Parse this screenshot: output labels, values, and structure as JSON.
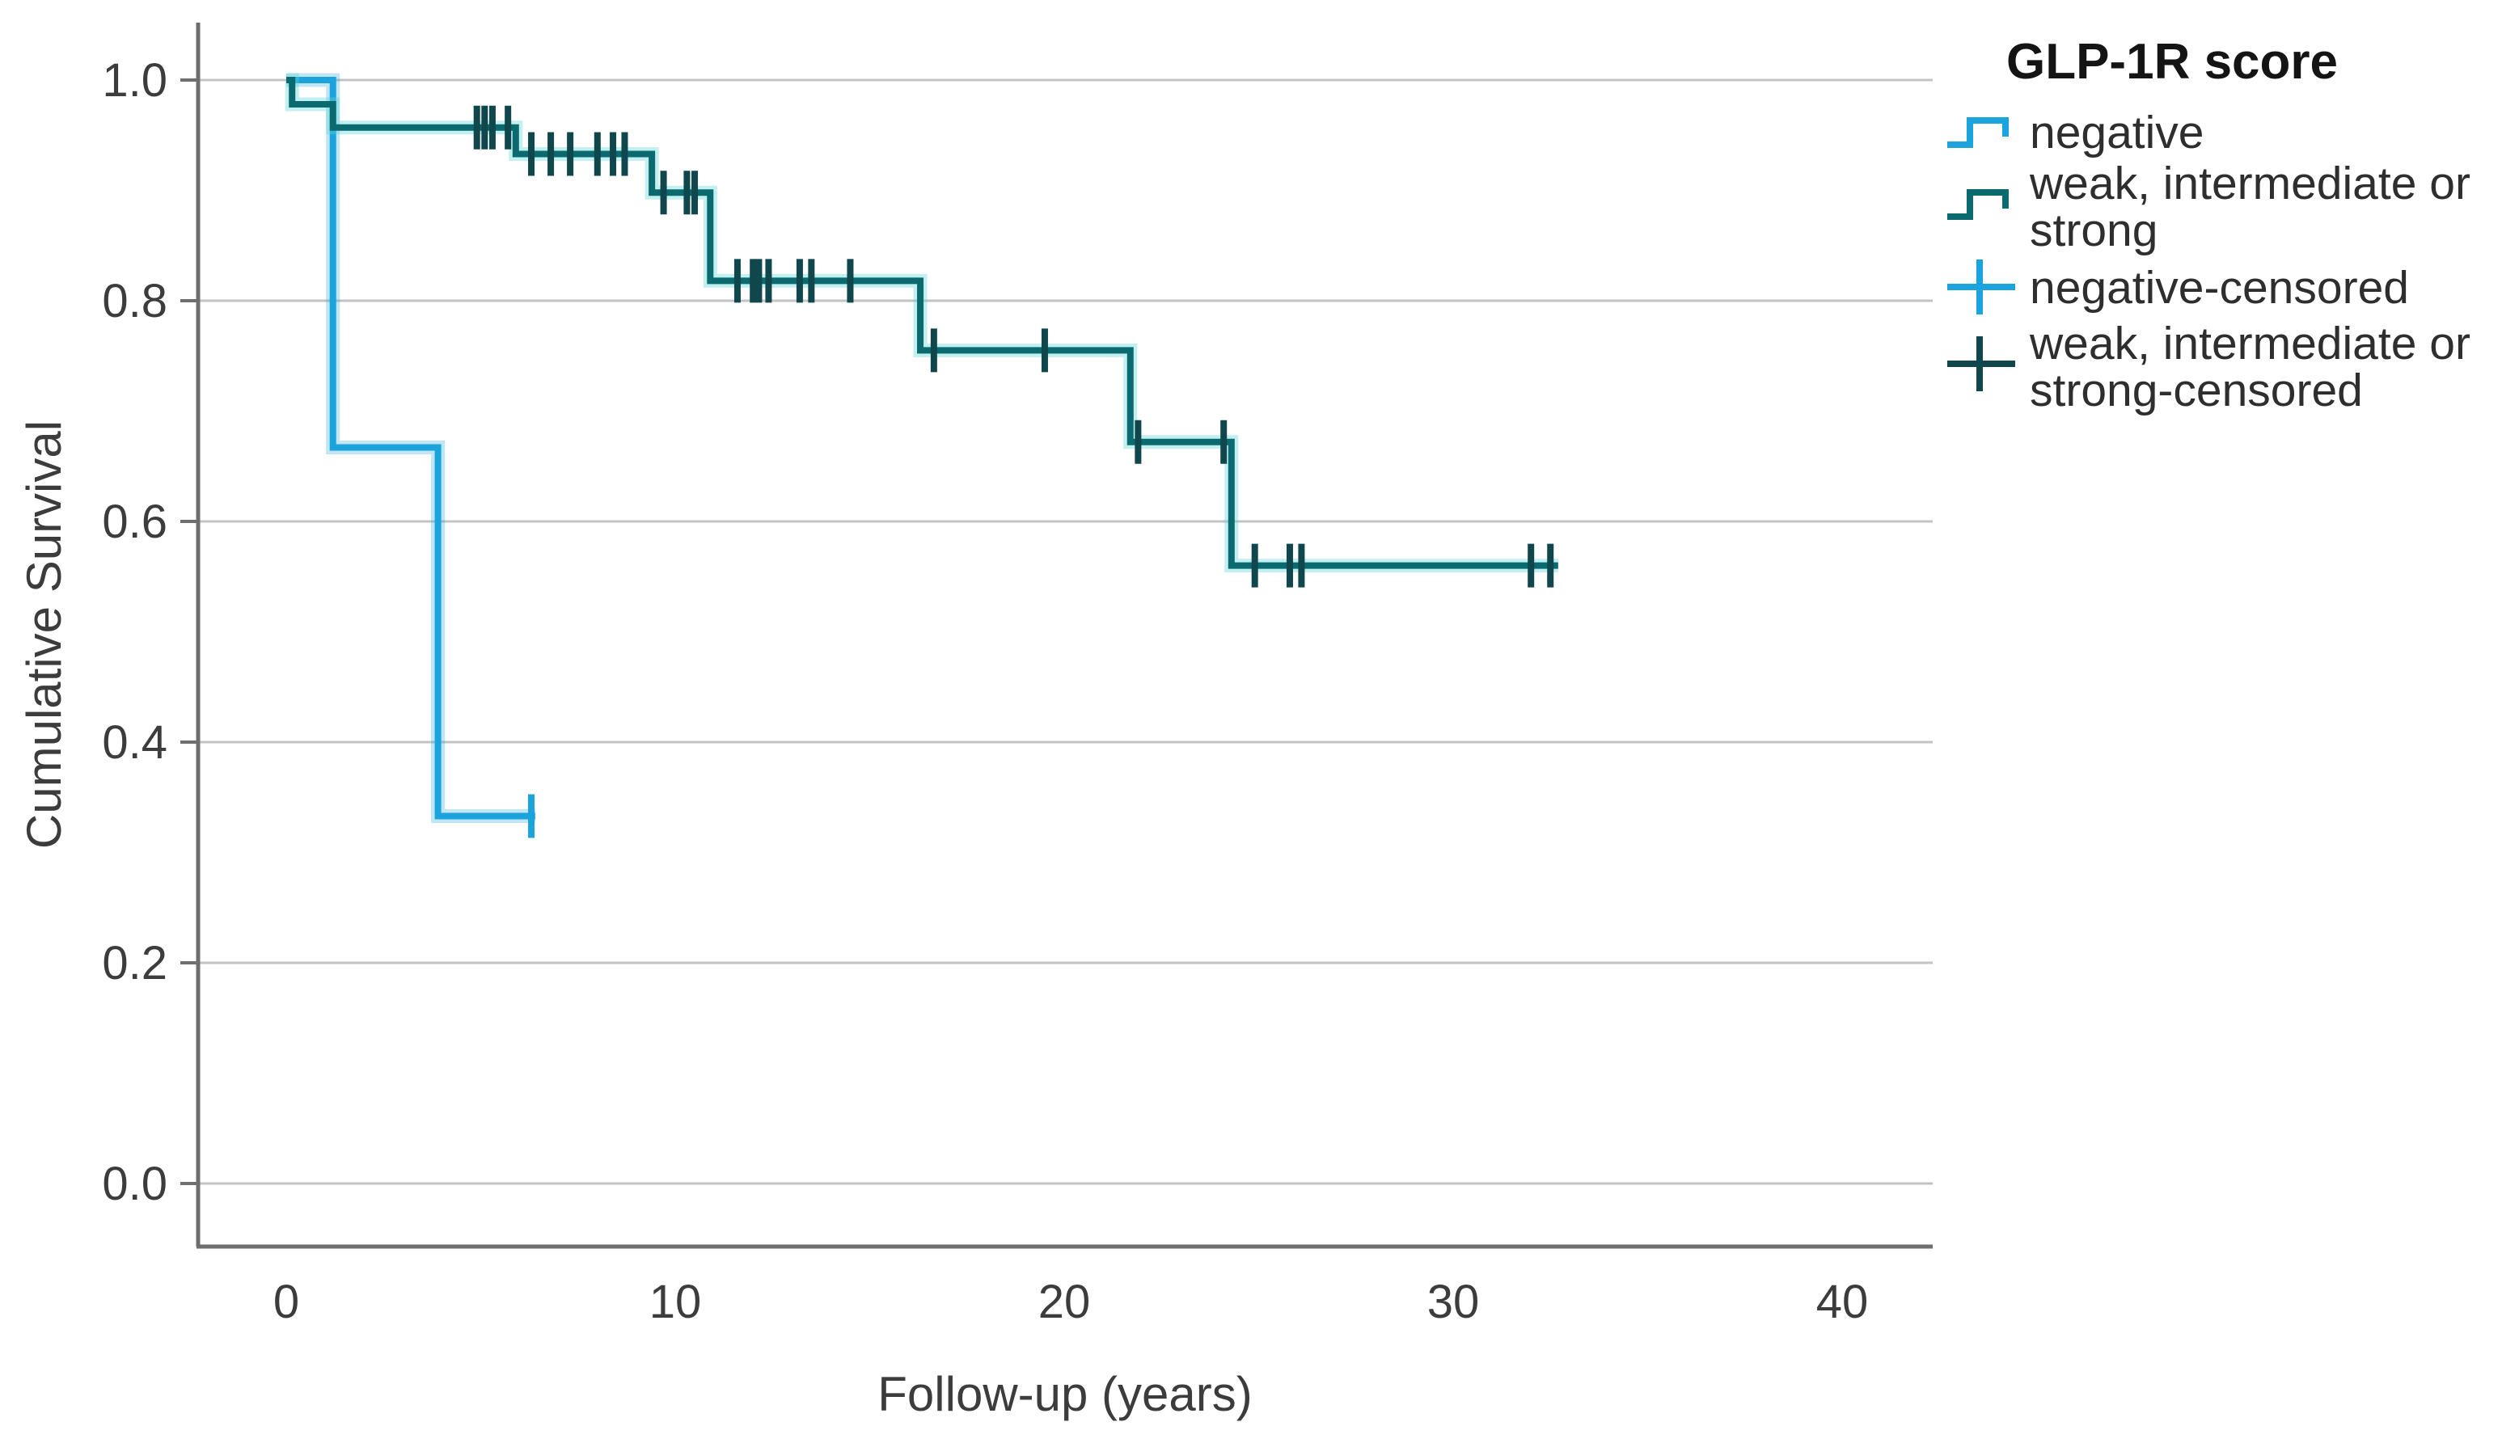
{
  "figure": {
    "background": "#ffffff"
  },
  "y_axis": {
    "title": "Cumulative Survival",
    "tick_labels": [
      "1.0",
      "0.8",
      "0.6",
      "0.4",
      "0.2",
      "0.0"
    ]
  },
  "x_axis": {
    "title": "Follow-up (years)",
    "tick_labels": [
      "0",
      "10",
      "20",
      "30",
      "40"
    ]
  },
  "legend": {
    "title": "GLP-1R score",
    "items": [
      {
        "lines": [
          "negative"
        ],
        "symbol": "step",
        "color": "#1ba3db"
      },
      {
        "lines": [
          "weak, intermediate or",
          "strong"
        ],
        "symbol": "step",
        "color": "#0b6a70"
      },
      {
        "lines": [
          "negative-censored"
        ],
        "symbol": "plus",
        "color": "#1ba3db"
      },
      {
        "lines": [
          "weak, intermediate or",
          "strong-censored"
        ],
        "symbol": "plus",
        "color": "#10474c"
      }
    ]
  },
  "colors": {
    "negative": "#1ba3db",
    "negative_halo": "rgba(27,163,219,0.28)",
    "weak_intermediate_strong": "#0b6a70",
    "weak_halo": "rgba(94,214,214,0.38)",
    "weak_censor": "#10474c",
    "gridline": "#c3c3c3",
    "axis": "#6e6e6e"
  },
  "chart_data": {
    "type": "line",
    "subtype": "kaplan-meier-step",
    "title": "",
    "xlabel": "Follow-up (years)",
    "ylabel": "Cumulative Survival",
    "xlim": [
      -2.3,
      42.3
    ],
    "ylim": [
      -0.06,
      1.04
    ],
    "x_ticks": [
      0,
      10,
      20,
      30,
      40
    ],
    "y_ticks": [
      1.0,
      0.8,
      0.6,
      0.4,
      0.2,
      0.0
    ],
    "grid": "horizontal",
    "legend_position": "top-right-outside",
    "legend_title": "GLP-1R score",
    "series": [
      {
        "name": "negative",
        "steps": [
          [
            0,
            1.0
          ],
          [
            1.2,
            0.667
          ],
          [
            3.9,
            0.333
          ]
        ],
        "end_x": 6.4,
        "censored": [
          [
            6.3,
            0.333
          ]
        ]
      },
      {
        "name": "weak, intermediate or strong",
        "steps": [
          [
            0,
            1.0
          ],
          [
            0.15,
            0.978
          ],
          [
            1.2,
            0.957
          ],
          [
            5.9,
            0.933
          ],
          [
            9.4,
            0.898
          ],
          [
            10.9,
            0.818
          ],
          [
            16.3,
            0.755
          ],
          [
            21.7,
            0.672
          ],
          [
            24.3,
            0.56
          ]
        ],
        "end_x": 32.7,
        "censored": [
          [
            4.9,
            0.957
          ],
          [
            5.1,
            0.957
          ],
          [
            5.3,
            0.957
          ],
          [
            5.7,
            0.957
          ],
          [
            6.3,
            0.933
          ],
          [
            6.8,
            0.933
          ],
          [
            7.3,
            0.933
          ],
          [
            8.0,
            0.933
          ],
          [
            8.4,
            0.933
          ],
          [
            8.7,
            0.933
          ],
          [
            9.7,
            0.898
          ],
          [
            10.3,
            0.898
          ],
          [
            10.5,
            0.898
          ],
          [
            11.6,
            0.818
          ],
          [
            12.0,
            0.818
          ],
          [
            12.15,
            0.818
          ],
          [
            12.4,
            0.818
          ],
          [
            13.2,
            0.818
          ],
          [
            13.5,
            0.818
          ],
          [
            14.5,
            0.818
          ],
          [
            16.65,
            0.755
          ],
          [
            19.5,
            0.755
          ],
          [
            21.9,
            0.672
          ],
          [
            24.1,
            0.672
          ],
          [
            24.9,
            0.56
          ],
          [
            25.8,
            0.56
          ],
          [
            26.1,
            0.56
          ],
          [
            32.0,
            0.56
          ],
          [
            32.5,
            0.56
          ]
        ]
      }
    ]
  }
}
